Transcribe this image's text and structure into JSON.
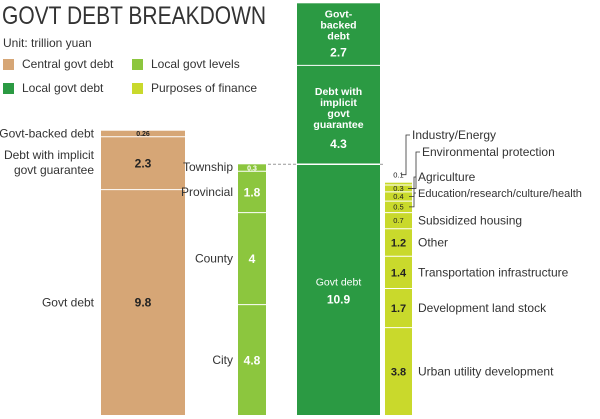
{
  "title": "GOVT DEBT BREAKDOWN",
  "unit": "Unit: trillion yuan",
  "legend": [
    {
      "label": "Central govt debt",
      "color": "#d6a676"
    },
    {
      "label": "Local govt levels",
      "color": "#8cc63e"
    },
    {
      "label": "Local govt debt",
      "color": "#2b9a43"
    },
    {
      "label": "Purposes of finance",
      "color": "#c9d92c"
    }
  ],
  "chart_data": {
    "type": "bar",
    "stacked": true,
    "unit": "trillion yuan",
    "bars": [
      {
        "name": "Central govt debt",
        "color": "#d6a676",
        "segments": [
          {
            "label": "Govt debt",
            "value": 9.8
          },
          {
            "label": "Debt with  implicit govt guarantee",
            "value": 2.3
          },
          {
            "label": "Govt-backed debt",
            "value": 0.26
          }
        ]
      },
      {
        "name": "Local govt levels",
        "color": "#8cc63e",
        "segments": [
          {
            "label": "City",
            "value": 4.8
          },
          {
            "label": "County",
            "value": 4
          },
          {
            "label": "Provincial",
            "value": 1.8
          },
          {
            "label": "Township",
            "value": 0.3
          }
        ]
      },
      {
        "name": "Local govt debt",
        "color": "#2b9a43",
        "segments": [
          {
            "label": "Govt debt",
            "value": 10.9
          },
          {
            "label": "Debt with implicit govt guarantee",
            "value": 4.3
          },
          {
            "label": "Govt-backed debt",
            "value": 2.7
          }
        ]
      },
      {
        "name": "Purposes of finance",
        "color": "#c9d92c",
        "segments": [
          {
            "label": "Urban utility development",
            "value": 3.8
          },
          {
            "label": "Development land stock",
            "value": 1.7
          },
          {
            "label": "Transportation infrastructure",
            "value": 1.4
          },
          {
            "label": "Other",
            "value": 1.2
          },
          {
            "label": "Subsidized housing",
            "value": 0.7
          },
          {
            "label": "Education/research/culture/health",
            "value": 0.5
          },
          {
            "label": "Agriculture",
            "value": 0.4
          },
          {
            "label": "Environmental protection",
            "value": 0.3
          },
          {
            "label": "Industry/Energy",
            "value": 0.1
          }
        ]
      }
    ]
  }
}
